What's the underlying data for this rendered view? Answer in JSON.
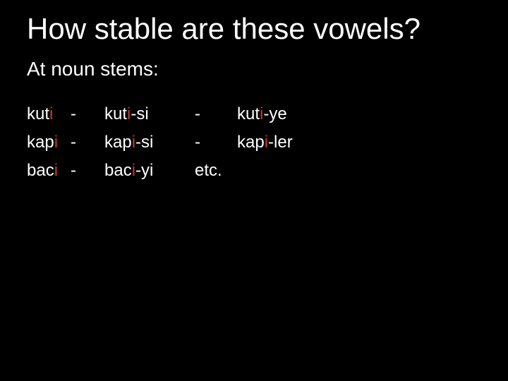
{
  "slide": {
    "background_color": "#000000",
    "text_color": "#ffffff",
    "accent_color": "#c43a2f",
    "title_fontsize": 42,
    "subtitle_fontsize": 28,
    "body_fontsize": 24,
    "title": "How stable are these vowels?",
    "subtitle": "At noun stems:",
    "rows": [
      {
        "c0_pre": "kut",
        "c0_red": "i",
        "c1": "-",
        "c2_pre": "kut",
        "c2_red": "i",
        "c2_post": "-si",
        "c3": "-",
        "c4_pre": "kut",
        "c4_red": "i",
        "c4_post": "-ye"
      },
      {
        "c0_pre": "kap",
        "c0_red": "i",
        "c1": "-",
        "c2_pre": "kap",
        "c2_red": "i",
        "c2_post": "-si",
        "c3": "-",
        "c4_pre": "kap",
        "c4_red": "i",
        "c4_post": "-ler"
      },
      {
        "c0_pre": "bac",
        "c0_red": "i",
        "c1": "-",
        "c2_pre": "bac",
        "c2_red": "i",
        "c2_post": "-yi",
        "c3": "etc.",
        "c4_pre": "",
        "c4_red": "",
        "c4_post": ""
      }
    ]
  }
}
